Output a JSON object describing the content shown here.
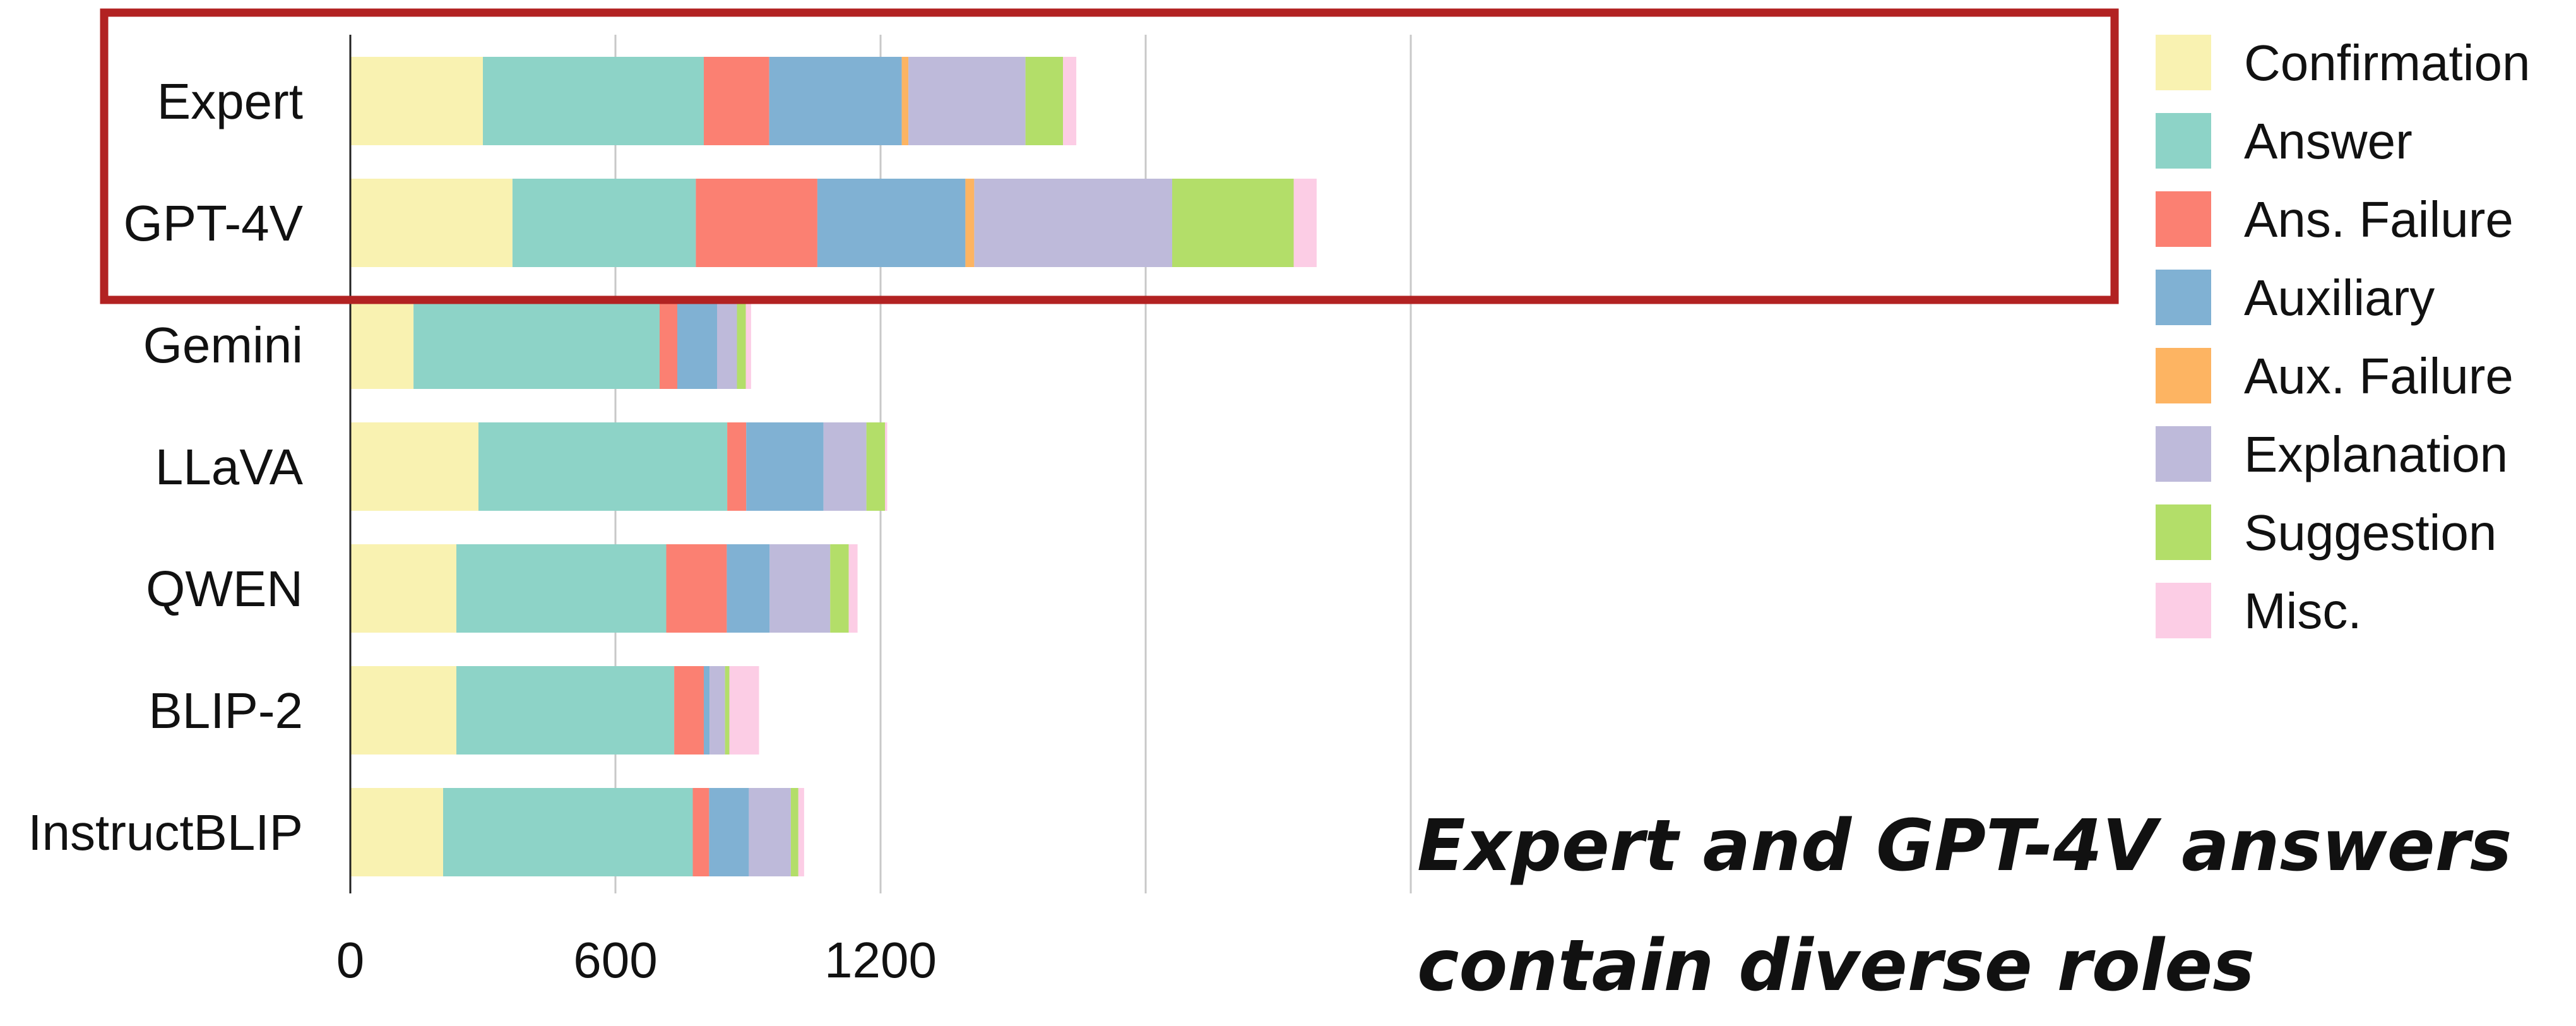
{
  "chart_data": {
    "type": "bar",
    "orientation": "horizontal",
    "stacked": true,
    "categories": [
      "Expert",
      "GPT-4V",
      "Gemini",
      "LLaVA",
      "QWEN",
      "BLIP-2",
      "InstructBLIP"
    ],
    "series": [
      {
        "name": "Confirmation",
        "color": "#f9f2b1",
        "values": [
          300,
          367,
          143,
          290,
          240,
          240,
          210
        ]
      },
      {
        "name": "Answer",
        "color": "#8dd3c7",
        "values": [
          500,
          415,
          557,
          563,
          475,
          493,
          565
        ]
      },
      {
        "name": "Ans. Failure",
        "color": "#fb8072",
        "values": [
          148,
          275,
          40,
          43,
          137,
          67,
          37
        ]
      },
      {
        "name": "Auxiliary",
        "color": "#80b1d3",
        "values": [
          300,
          335,
          90,
          175,
          97,
          13,
          90
        ]
      },
      {
        "name": "Aux. Failure",
        "color": "#fdb462",
        "values": [
          15,
          20,
          0,
          0,
          0,
          0,
          0
        ]
      },
      {
        "name": "Explanation",
        "color": "#bebada",
        "values": [
          265,
          448,
          45,
          97,
          137,
          35,
          95
        ]
      },
      {
        "name": "Suggestion",
        "color": "#b3de69",
        "values": [
          85,
          275,
          20,
          42,
          42,
          10,
          17
        ]
      },
      {
        "name": "Misc.",
        "color": "#fccde5",
        "values": [
          30,
          52,
          12,
          5,
          20,
          67,
          13
        ]
      }
    ],
    "xticks": [
      0,
      600,
      1200
    ],
    "xlim": [
      0,
      2400
    ],
    "xlabel": "",
    "ylabel": "",
    "grid": true,
    "legend_position": "right",
    "highlight": {
      "rows": [
        "Expert",
        "GPT-4V"
      ],
      "color": "#b22222"
    },
    "annotation": [
      "Expert and GPT-4V answers",
      "contain diverse roles"
    ]
  }
}
